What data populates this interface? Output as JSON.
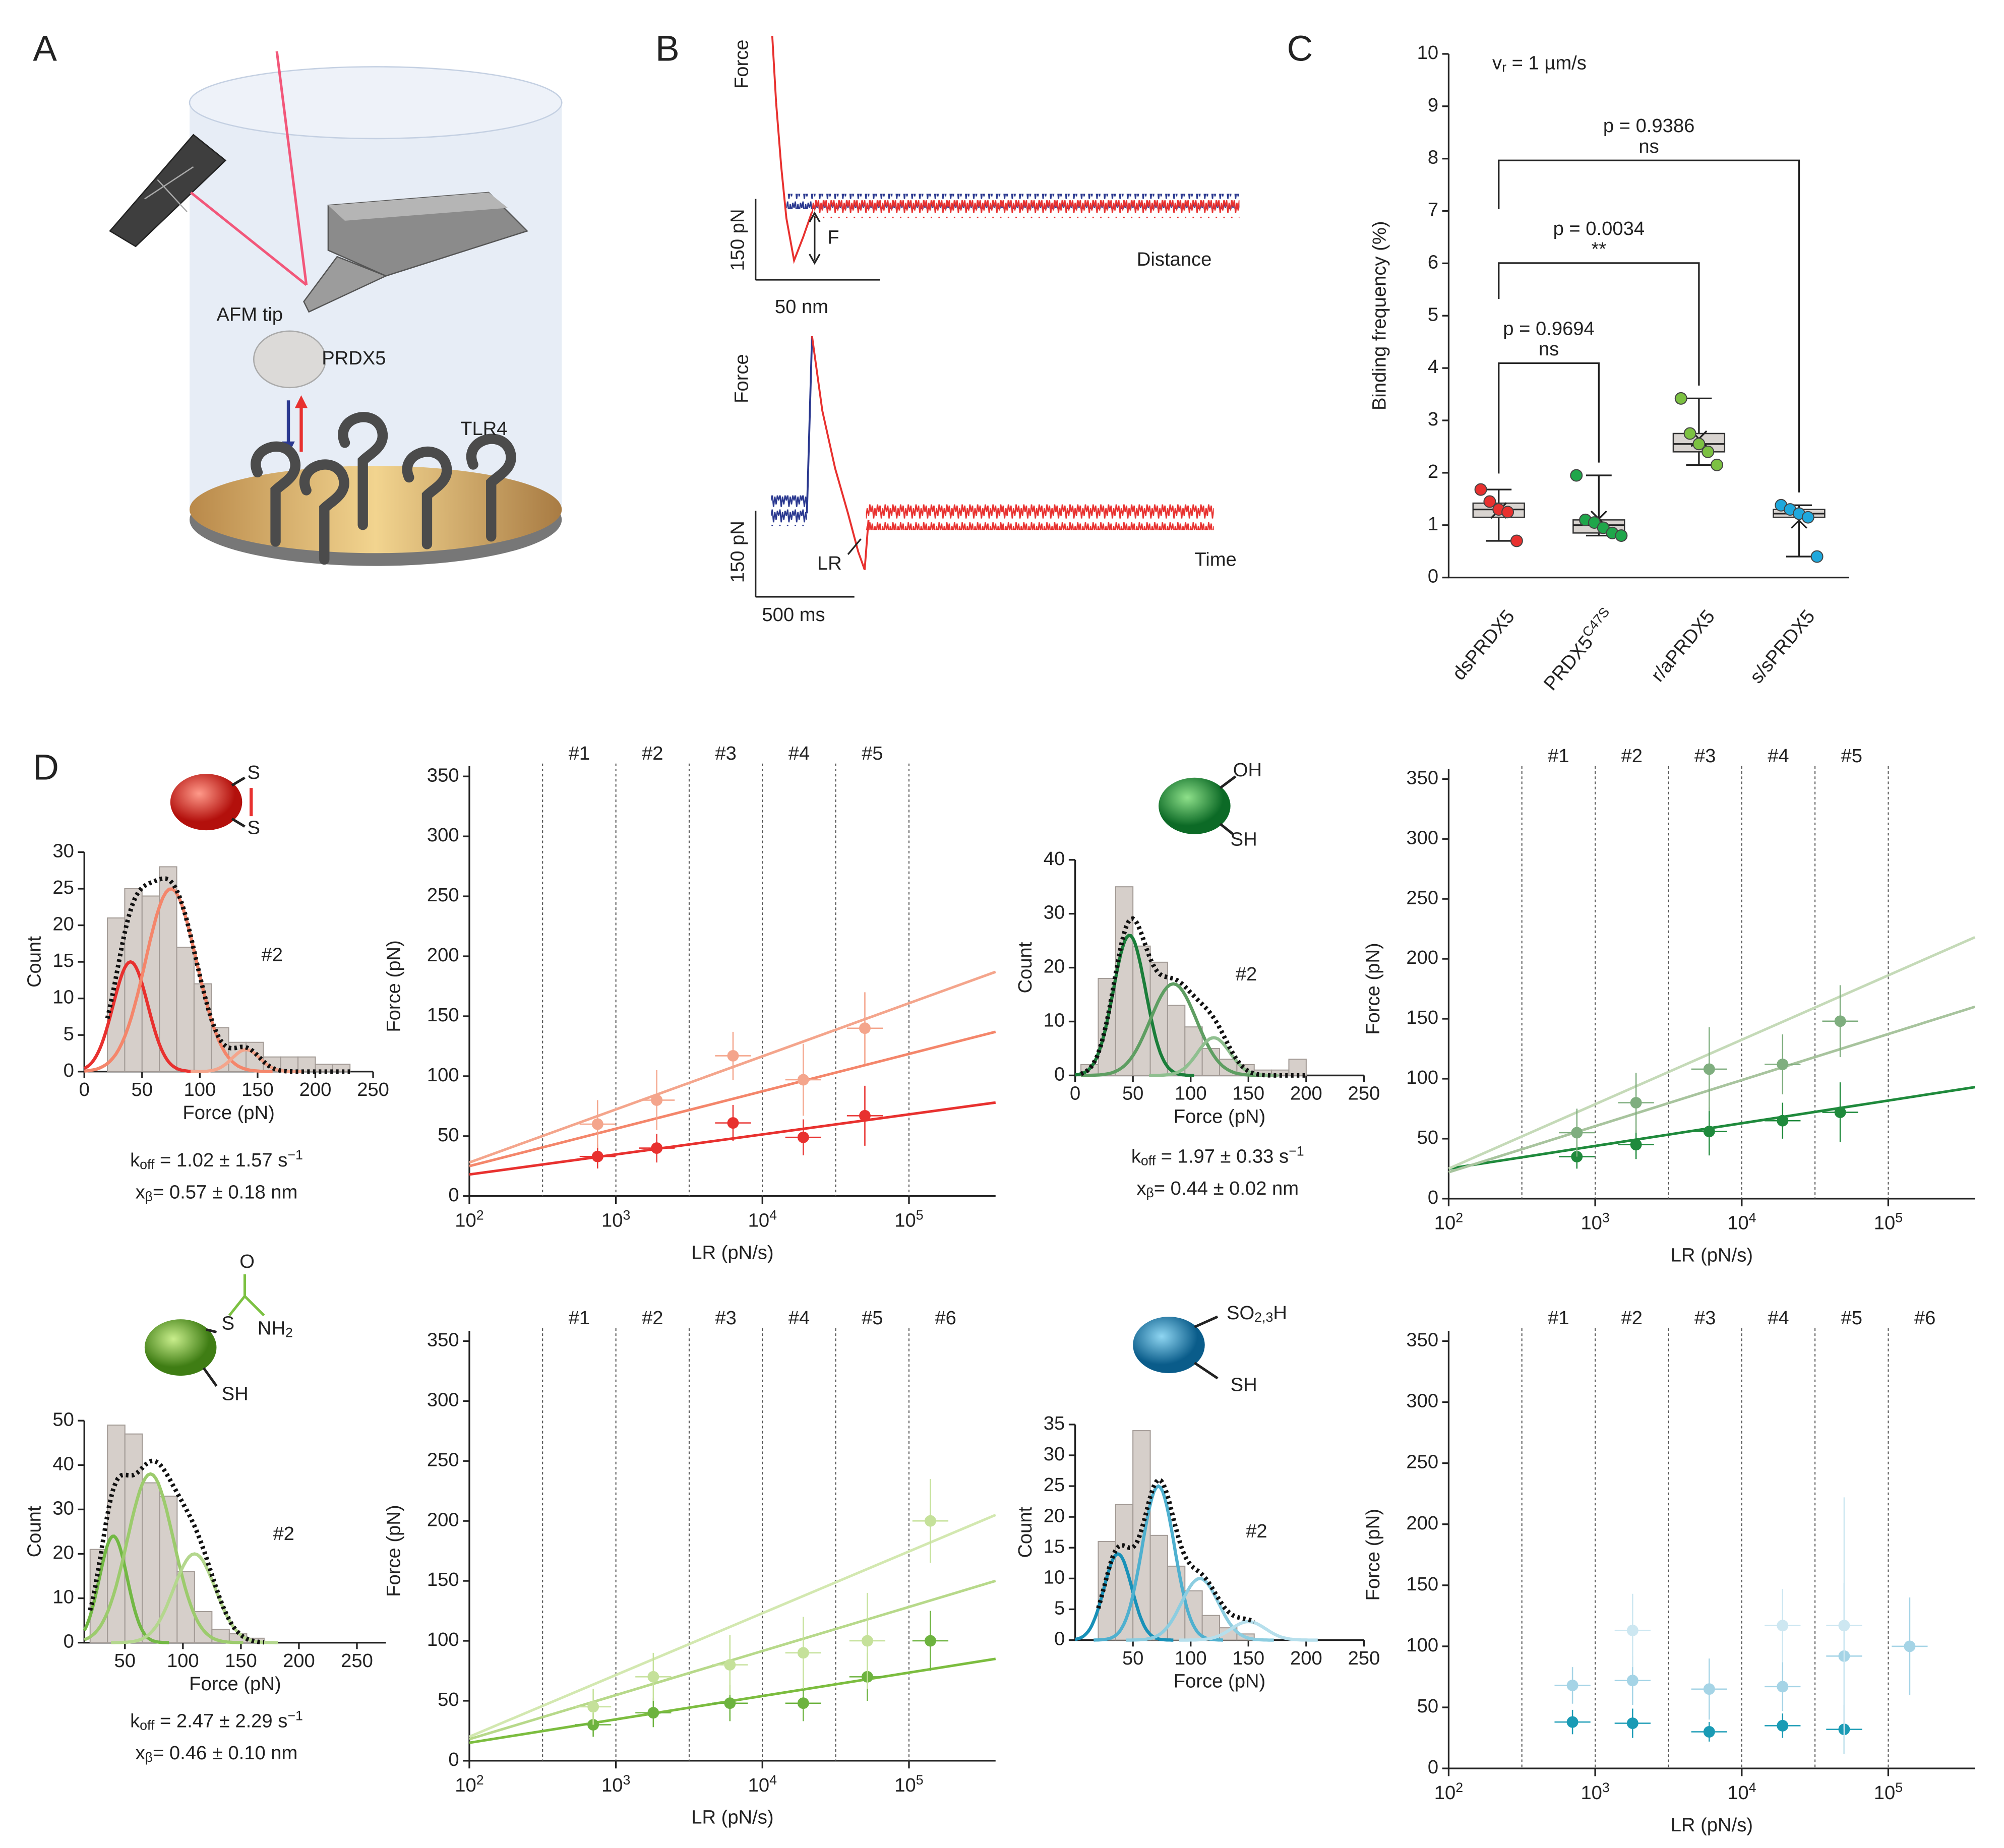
{
  "panels": {
    "labels": [
      "A",
      "B",
      "C",
      "D"
    ]
  },
  "panel_a": {
    "labels": [
      "AFM tip",
      "PRDX5",
      "TLR4"
    ]
  },
  "panel_b": {
    "top": {
      "y_label": "Force",
      "x_label": "Distance",
      "scale_y": "150 pN",
      "scale_x": "50 nm",
      "marker": "F"
    },
    "bottom": {
      "y_label": "Force",
      "x_label": "Time",
      "scale_y": "150 pN",
      "scale_x": "500 ms",
      "marker": "LR"
    }
  },
  "icons": [
    {
      "labels": [
        [
          "S"
        ],
        [
          "S"
        ]
      ],
      "label_colors": [
        "#e8312f",
        "#e8312f"
      ]
    },
    {
      "labels": [
        [
          "OH"
        ],
        [
          "SH"
        ]
      ],
      "label_colors": [
        "#1fa64a",
        "#222222"
      ]
    },
    {
      "labels": [
        [
          "O"
        ],
        [
          "S"
        ],
        [
          "NH",
          "2"
        ],
        [
          "SH"
        ]
      ],
      "label_colors": [
        "#7cc142",
        "#7cc142",
        "#7cc142",
        "#222222"
      ]
    },
    {
      "labels": [
        [
          "SO",
          "2,3",
          "H"
        ],
        [
          "SH"
        ]
      ],
      "label_colors": [
        "#1fa8dc",
        "#222222"
      ]
    }
  ],
  "chart_data": [
    {
      "type": "box",
      "annotation": [
        "v",
        "r",
        " = 1 µm/s"
      ],
      "annotation_color": "#e8312f",
      "ylabel": "Binding frequency (%)",
      "ylim": [
        0,
        10
      ],
      "yticks": [
        0,
        1,
        2,
        3,
        4,
        5,
        6,
        7,
        8,
        9,
        10
      ],
      "categories": [
        [
          "dsPRDX5"
        ],
        [
          "PRDX5",
          "C47S"
        ],
        [
          "r/aPRDX5"
        ],
        [
          "s/sPRDX5"
        ]
      ],
      "colors": [
        "#e8312f",
        "#1fa64a",
        "#7cc142",
        "#1fa8dc"
      ],
      "box_fill": "#d9d4d0",
      "boxes": [
        {
          "whisker_low": 0.7,
          "q1": 1.15,
          "median": 1.3,
          "q3": 1.42,
          "whisker_high": 1.68,
          "mean": 1.28,
          "points": [
            1.68,
            1.45,
            1.3,
            1.25,
            0.7
          ]
        },
        {
          "whisker_low": 0.8,
          "q1": 0.85,
          "median": 1.0,
          "q3": 1.1,
          "whisker_high": 1.95,
          "mean": 1.12,
          "points": [
            1.95,
            1.1,
            1.05,
            0.95,
            0.85,
            0.8
          ]
        },
        {
          "whisker_low": 2.15,
          "q1": 2.4,
          "median": 2.55,
          "q3": 2.75,
          "whisker_high": 3.42,
          "mean": 2.65,
          "points": [
            3.42,
            2.75,
            2.55,
            2.4,
            2.15
          ]
        },
        {
          "whisker_low": 0.4,
          "q1": 1.15,
          "median": 1.22,
          "q3": 1.3,
          "whisker_high": 1.38,
          "mean": 1.09,
          "points": [
            1.38,
            1.3,
            1.22,
            1.15,
            0.4
          ]
        }
      ],
      "comparisons": [
        {
          "from": 0,
          "to": 1,
          "p": "p = 0.9694",
          "label": "ns"
        },
        {
          "from": 0,
          "to": 2,
          "p": "p = 0.0034",
          "label": "**"
        },
        {
          "from": 0,
          "to": 3,
          "p": "p = 0.9386",
          "label": "ns"
        }
      ]
    },
    {
      "type": "histogram",
      "xlabel": "Force (pN)",
      "ylabel": "Count",
      "annotation": "#2",
      "xlim": [
        0,
        250
      ],
      "xticks": [
        0,
        50,
        100,
        150,
        200,
        250
      ],
      "ylim": [
        0,
        30
      ],
      "yticks": [
        0,
        5,
        10,
        15,
        20,
        25,
        30
      ],
      "bins": [
        20,
        35,
        50,
        65,
        80,
        95,
        110,
        125,
        140,
        155,
        170,
        185,
        200,
        215,
        230
      ],
      "counts": [
        21,
        25,
        24,
        28,
        17,
        12,
        6,
        4,
        4,
        2,
        2,
        2,
        1,
        1
      ],
      "color": "#d6cfca",
      "fits": [
        {
          "color": "#e8312f",
          "center": 40,
          "width": 15,
          "height": 15
        },
        {
          "color": "#f4866b",
          "center": 75,
          "width": 22,
          "height": 25
        },
        {
          "color": "#f4a58c",
          "center": 140,
          "width": 12,
          "height": 3
        }
      ],
      "rates": [
        [
          "k",
          "off",
          " = 1.02 ± 1.57 s",
          "−1"
        ],
        [
          "x",
          "β",
          "= 0.57 ± 0.18 nm"
        ]
      ],
      "rates_color": "#e8312f"
    },
    {
      "type": "scatter",
      "xlabel": "LR (pN/s)",
      "ylabel": "Force (pN)",
      "log_x": true,
      "xlim": [
        100,
        390000
      ],
      "xticks": [
        {
          "value": 100,
          "label": "10",
          "exp": "2"
        },
        {
          "value": 1000,
          "label": "10",
          "exp": "3"
        },
        {
          "value": 10000,
          "label": "10",
          "exp": "4"
        },
        {
          "value": 100000,
          "label": "10",
          "exp": "5"
        }
      ],
      "ylim": [
        0,
        350
      ],
      "yticks": [
        0,
        50,
        100,
        150,
        200,
        250,
        300,
        350
      ],
      "bin_edges": [
        316,
        1000,
        3162,
        10000,
        31623,
        100000
      ],
      "bin_labels": [
        "#1",
        "#2",
        "#3",
        "#4",
        "#5"
      ],
      "fits": [
        {
          "color": "#e8312f",
          "x": [
            100,
            390000
          ],
          "y": [
            18,
            78
          ]
        },
        {
          "color": "#f4866b",
          "x": [
            100,
            390000
          ],
          "y": [
            25,
            137
          ]
        },
        {
          "color": "#f4a58c",
          "x": [
            100,
            390000
          ],
          "y": [
            28,
            187
          ]
        }
      ],
      "series": [
        {
          "color": "#e8312f",
          "x": [
            750,
            1900,
            6300,
            19000,
            50000
          ],
          "y": [
            33,
            40,
            61,
            49,
            67
          ],
          "yerr": [
            10,
            12,
            15,
            15,
            25
          ]
        },
        {
          "color": "#f4a58c",
          "x": [
            750,
            1900,
            6300,
            19000,
            50000
          ],
          "y": [
            60,
            80,
            117,
            97,
            140
          ],
          "yerr": [
            20,
            25,
            20,
            30,
            30
          ]
        }
      ]
    },
    {
      "type": "histogram",
      "xlabel": "Force (pN)",
      "ylabel": "Count",
      "annotation": "#2",
      "xlim": [
        0,
        250
      ],
      "xticks": [
        0,
        50,
        100,
        150,
        200,
        250
      ],
      "ylim": [
        0,
        40
      ],
      "yticks": [
        0,
        10,
        20,
        30,
        40
      ],
      "bins": [
        5,
        20,
        35,
        50,
        65,
        80,
        95,
        110,
        125,
        140,
        155,
        170,
        185,
        200
      ],
      "counts": [
        2,
        18,
        35,
        24,
        21,
        13,
        9,
        5,
        3,
        2,
        1,
        1,
        3
      ],
      "color": "#d6cfca",
      "fits": [
        {
          "color": "#1b7e3a",
          "center": 47,
          "width": 14,
          "height": 26
        },
        {
          "color": "#5e9e62",
          "center": 85,
          "width": 20,
          "height": 17
        },
        {
          "color": "#8fbf8f",
          "center": 120,
          "width": 14,
          "height": 7
        }
      ],
      "rates": [
        [
          "k",
          "off",
          " = 1.97 ± 0.33 s",
          "−1"
        ],
        [
          "x",
          "β",
          "= 0.44 ± 0.02 nm"
        ]
      ],
      "rates_color": "#129a48"
    },
    {
      "type": "scatter",
      "xlabel": "LR (pN/s)",
      "ylabel": "Force (pN)",
      "log_x": true,
      "xlim": [
        100,
        390000
      ],
      "xticks": [
        {
          "value": 100,
          "label": "10",
          "exp": "2"
        },
        {
          "value": 1000,
          "label": "10",
          "exp": "3"
        },
        {
          "value": 10000,
          "label": "10",
          "exp": "4"
        },
        {
          "value": 100000,
          "label": "10",
          "exp": "5"
        }
      ],
      "ylim": [
        0,
        350
      ],
      "yticks": [
        0,
        50,
        100,
        150,
        200,
        250,
        300,
        350
      ],
      "bin_edges": [
        316,
        1000,
        3162,
        10000,
        31623,
        100000
      ],
      "bin_labels": [
        "#1",
        "#2",
        "#3",
        "#4",
        "#5"
      ],
      "fits": [
        {
          "color": "#1f8a3c",
          "x": [
            100,
            390000
          ],
          "y": [
            25,
            93
          ]
        },
        {
          "color": "#a8c49e",
          "x": [
            100,
            390000
          ],
          "y": [
            22,
            160
          ]
        },
        {
          "color": "#c5dab8",
          "x": [
            100,
            390000
          ],
          "y": [
            25,
            218
          ]
        }
      ],
      "series": [
        {
          "color": "#1f8a3c",
          "x": [
            750,
            1900,
            6000,
            19000,
            47000
          ],
          "y": [
            35,
            45,
            56,
            65,
            72
          ],
          "yerr": [
            10,
            12,
            20,
            15,
            25
          ]
        },
        {
          "color": "#7fae7f",
          "x": [
            750,
            1900,
            6000,
            19000,
            47000
          ],
          "y": [
            55,
            80,
            108,
            112,
            148
          ],
          "yerr": [
            20,
            25,
            35,
            25,
            30
          ]
        }
      ]
    },
    {
      "type": "histogram",
      "xlabel": "Force (pN)",
      "ylabel": "Count",
      "annotation": "#2",
      "xlim": [
        15,
        275
      ],
      "xticks": [
        50,
        100,
        150,
        200,
        250
      ],
      "ylim": [
        0,
        50
      ],
      "yticks": [
        0,
        10,
        20,
        30,
        40,
        50
      ],
      "bins": [
        20,
        35,
        50,
        65,
        80,
        95,
        110,
        125,
        140,
        155,
        170
      ],
      "counts": [
        21,
        49,
        47,
        36,
        33,
        16,
        7,
        3,
        2,
        1
      ],
      "color": "#d6cfca",
      "fits": [
        {
          "color": "#72b844",
          "center": 40,
          "width": 12,
          "height": 24
        },
        {
          "color": "#9ccb6d",
          "center": 72,
          "width": 20,
          "height": 38
        },
        {
          "color": "#b4d78e",
          "center": 110,
          "width": 18,
          "height": 20
        }
      ],
      "rates": [
        [
          "k",
          "off",
          " = 2.47 ± 2.29 s",
          "−1"
        ],
        [
          "x",
          "β",
          "= 0.46 ± 0.10 nm"
        ]
      ],
      "rates_color": "#6db33f"
    },
    {
      "type": "scatter",
      "xlabel": "LR (pN/s)",
      "ylabel": "Force (pN)",
      "log_x": true,
      "xlim": [
        100,
        390000
      ],
      "xticks": [
        {
          "value": 100,
          "label": "10",
          "exp": "2"
        },
        {
          "value": 1000,
          "label": "10",
          "exp": "3"
        },
        {
          "value": 10000,
          "label": "10",
          "exp": "4"
        },
        {
          "value": 100000,
          "label": "10",
          "exp": "5"
        }
      ],
      "ylim": [
        0,
        350
      ],
      "yticks": [
        0,
        50,
        100,
        150,
        200,
        250,
        300,
        350
      ],
      "bin_edges": [
        316,
        1000,
        3162,
        10000,
        31623,
        100000
      ],
      "bin_labels": [
        "#1",
        "#2",
        "#3",
        "#4",
        "#5",
        "#6"
      ],
      "fits": [
        {
          "color": "#7cbd3f",
          "x": [
            100,
            390000
          ],
          "y": [
            15,
            85
          ]
        },
        {
          "color": "#b7d98a",
          "x": [
            100,
            390000
          ],
          "y": [
            18,
            150
          ]
        },
        {
          "color": "#d3e8b0",
          "x": [
            100,
            390000
          ],
          "y": [
            20,
            205
          ]
        }
      ],
      "series": [
        {
          "color": "#6db33f",
          "x": [
            700,
            1800,
            6000,
            19000,
            52000,
            140000
          ],
          "y": [
            30,
            40,
            48,
            48,
            70,
            100
          ],
          "yerr": [
            10,
            12,
            15,
            15,
            20,
            25
          ]
        },
        {
          "color": "#c5e19a",
          "x": [
            700,
            1800,
            6000,
            19000,
            52000,
            140000
          ],
          "y": [
            45,
            70,
            80,
            90,
            100,
            200
          ],
          "yerr": [
            15,
            20,
            25,
            30,
            40,
            35
          ]
        }
      ]
    },
    {
      "type": "histogram",
      "xlabel": "Force (pN)",
      "ylabel": "Count",
      "annotation": "#2",
      "xlim": [
        0,
        250
      ],
      "xticks": [
        50,
        100,
        150,
        200,
        250
      ],
      "ylim": [
        0,
        35
      ],
      "yticks": [
        0,
        5,
        10,
        15,
        20,
        25,
        30,
        35
      ],
      "bins": [
        20,
        35,
        50,
        65,
        80,
        95,
        110,
        125,
        140,
        155
      ],
      "counts": [
        16,
        22,
        34,
        17,
        12,
        8,
        4,
        2,
        1
      ],
      "color": "#d6cfca",
      "fits": [
        {
          "color": "#1991b8",
          "center": 37,
          "width": 12,
          "height": 14
        },
        {
          "color": "#4fb0cf",
          "center": 72,
          "width": 14,
          "height": 25
        },
        {
          "color": "#8ccde0",
          "center": 108,
          "width": 16,
          "height": 10
        },
        {
          "color": "#b6dfec",
          "center": 150,
          "width": 15,
          "height": 3
        }
      ]
    },
    {
      "type": "scatter",
      "xlabel": "LR (pN/s)",
      "ylabel": "Force (pN)",
      "log_x": true,
      "xlim": [
        100,
        390000
      ],
      "xticks": [
        {
          "value": 100,
          "label": "10",
          "exp": "2"
        },
        {
          "value": 1000,
          "label": "10",
          "exp": "3"
        },
        {
          "value": 10000,
          "label": "10",
          "exp": "4"
        },
        {
          "value": 100000,
          "label": "10",
          "exp": "5"
        }
      ],
      "ylim": [
        0,
        350
      ],
      "yticks": [
        0,
        50,
        100,
        150,
        200,
        250,
        300,
        350
      ],
      "bin_edges": [
        316,
        1000,
        3162,
        10000,
        31623,
        100000
      ],
      "bin_labels": [
        "#1",
        "#2",
        "#3",
        "#4",
        "#5",
        "#6"
      ],
      "series": [
        {
          "color": "#1a9bb5",
          "x": [
            700,
            1800,
            6000,
            19000,
            50000
          ],
          "y": [
            38,
            37,
            30,
            35,
            32
          ],
          "yerr": [
            10,
            12,
            8,
            10,
            20
          ]
        },
        {
          "color": "#a5d4e6",
          "x": [
            700,
            1800,
            6000,
            19000,
            50000,
            140000
          ],
          "y": [
            68,
            72,
            65,
            67,
            92,
            100
          ],
          "yerr": [
            15,
            20,
            25,
            20,
            60,
            40
          ]
        },
        {
          "color": "#cde7f1",
          "x": [
            1800,
            19000,
            50000
          ],
          "y": [
            113,
            117,
            117
          ],
          "yerr": [
            30,
            30,
            105
          ]
        }
      ]
    }
  ]
}
